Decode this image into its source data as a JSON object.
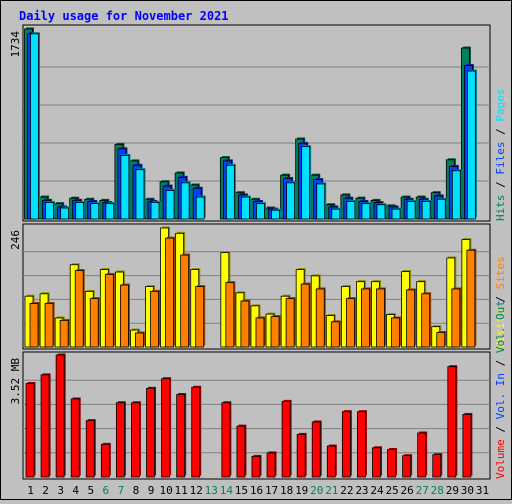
{
  "chart_data": {
    "type": "bar",
    "title": "Daily usage for November 2021",
    "colors": {
      "hits": "#00805c",
      "files": "#0040ff",
      "pages": "#00e0ff",
      "visits": "#ffff00",
      "sites": "#ff8000",
      "volume": "#ff0000",
      "weekend_label": "#00805c",
      "title": "#0000ff"
    },
    "categories": [
      "1",
      "2",
      "3",
      "4",
      "5",
      "6",
      "7",
      "8",
      "9",
      "10",
      "11",
      "12",
      "13",
      "14",
      "15",
      "16",
      "17",
      "18",
      "19",
      "20",
      "21",
      "22",
      "23",
      "24",
      "25",
      "26",
      "27",
      "28",
      "29",
      "30",
      "31"
    ],
    "weekend_days": [
      "6",
      "7",
      "13",
      "14",
      "20",
      "21",
      "27",
      "28"
    ],
    "panels": [
      {
        "id": "hits",
        "ymax": 1734,
        "ytick_label": "1734",
        "axis_label_parts": [
          {
            "text": "Hits",
            "color_key": "hits"
          },
          {
            "text": " / ",
            "color_key": "sep"
          },
          {
            "text": "Files",
            "color_key": "files"
          },
          {
            "text": " / ",
            "color_key": "sep"
          },
          {
            "text": "Pages",
            "color_key": "pages"
          }
        ],
        "series": [
          {
            "key": "hits",
            "values": [
              1734,
              200,
              140,
              190,
              180,
              170,
              680,
              530,
              180,
              340,
              420,
              310,
              null,
              560,
              240,
              180,
              100,
              400,
              730,
              400,
              130,
              220,
              190,
              170,
              120,
              200,
              200,
              240,
              540,
              1560,
              null
            ]
          },
          {
            "key": "files",
            "values": [
              1690,
              170,
              110,
              170,
              160,
              150,
              640,
              490,
              160,
              300,
              380,
              280,
              null,
              530,
              220,
              160,
              90,
              370,
              690,
              360,
              110,
              190,
              160,
              150,
              110,
              180,
              180,
              210,
              480,
              1400,
              null
            ]
          },
          {
            "key": "pages",
            "values": [
              1690,
              150,
              100,
              150,
              140,
              140,
              580,
              450,
              150,
              260,
              330,
              200,
              null,
              490,
              200,
              140,
              80,
              330,
              660,
              320,
              90,
              160,
              140,
              130,
              90,
              160,
              160,
              180,
              440,
              1350,
              null
            ]
          }
        ]
      },
      {
        "id": "visits",
        "ymax": 246,
        "ytick_label": "246",
        "axis_label_parts": [
          {
            "text": "Visits",
            "color_key": "visits"
          },
          {
            "text": " / ",
            "color_key": "sep"
          },
          {
            "text": "Sites",
            "color_key": "sites"
          }
        ],
        "series": [
          {
            "key": "visits",
            "values": [
              105,
              110,
              60,
              170,
              115,
              160,
              155,
              35,
              125,
              246,
              235,
              160,
              null,
              195,
              112,
              85,
              68,
              105,
              160,
              147,
              65,
              125,
              135,
              135,
              67,
              156,
              135,
              42,
              184,
              222,
              null
            ]
          },
          {
            "key": "sites",
            "values": [
              90,
              90,
              55,
              158,
              100,
              150,
              128,
              29,
              115,
              225,
              190,
              125,
              null,
              133,
              95,
              60,
              63,
              100,
              130,
              120,
              52,
              100,
              120,
              120,
              60,
              118,
              110,
              30,
              120,
              200,
              null
            ]
          }
        ]
      },
      {
        "id": "volume",
        "ymax": 3.52,
        "ytick_label": "3.52 MB",
        "axis_label_parts": [
          {
            "text": "Volume",
            "color_key": "volume"
          },
          {
            "text": " / ",
            "color_key": "sep"
          },
          {
            "text": "Vol. In",
            "color_key": "files"
          },
          {
            "text": " / ",
            "color_key": "sep"
          },
          {
            "text": "Vol. Out",
            "color_key": "hits"
          }
        ],
        "series": [
          {
            "key": "volume",
            "values": [
              2.72,
              2.97,
              3.55,
              2.27,
              1.64,
              0.95,
              2.16,
              2.16,
              2.58,
              2.86,
              2.4,
              2.61,
              null,
              2.16,
              1.48,
              0.6,
              0.7,
              2.2,
              1.24,
              1.6,
              0.9,
              1.9,
              1.9,
              0.85,
              0.8,
              0.62,
              1.28,
              0.65,
              3.21,
              1.82,
              null
            ]
          }
        ]
      }
    ]
  }
}
